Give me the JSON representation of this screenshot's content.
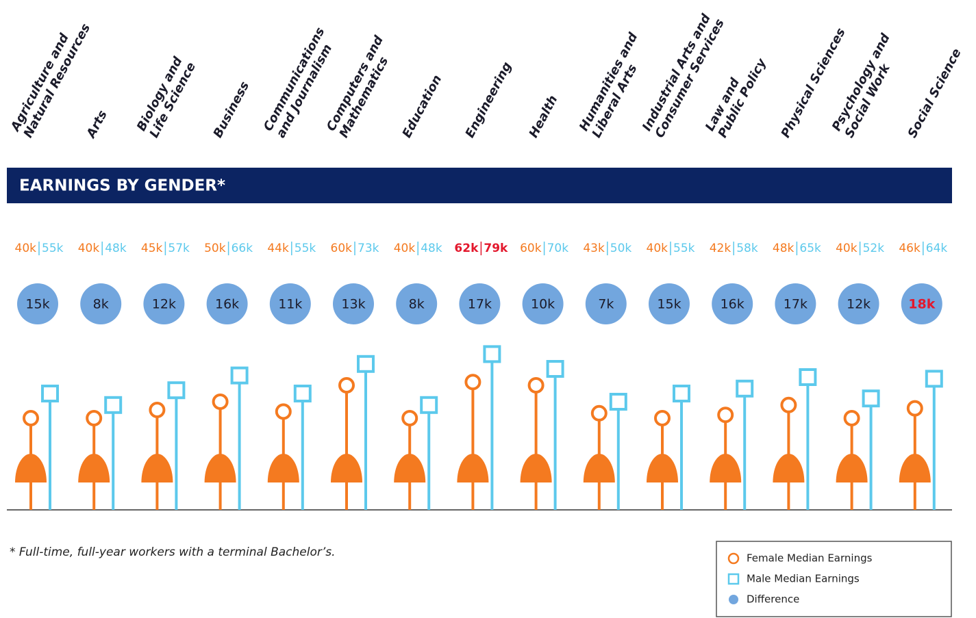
{
  "chart_data": {
    "type": "lollipop",
    "title": "EARNINGS BY GENDER*",
    "note": "* Full-time, full-year workers with a terminal Bachelor’s.",
    "categories": [
      "Agriculture and\nNatural Resources",
      "Arts",
      "Biology and\nLife Science",
      "Business",
      "Communications\nand Journalism",
      "Computers and\nMathematics",
      "Education",
      "Engineering",
      "Health",
      "Humanities and\nLiberal Arts",
      "Industrial Arts and\nConsumer Services",
      "Law and\nPublic Policy",
      "Physical Sciences",
      "Psychology and\nSocial Work",
      "Social Science"
    ],
    "series": [
      {
        "name": "Female Median Earnings",
        "color": "#f47a20",
        "values": [
          40,
          40,
          45,
          50,
          44,
          60,
          40,
          62,
          60,
          43,
          40,
          42,
          48,
          40,
          46
        ],
        "value_labels": [
          "40k",
          "40k",
          "45k",
          "50k",
          "44k",
          "60k",
          "40k",
          "62k",
          "60k",
          "43k",
          "40k",
          "42k",
          "48k",
          "40k",
          "46k"
        ]
      },
      {
        "name": "Male Median Earnings",
        "color": "#5cc9ec",
        "values": [
          55,
          48,
          57,
          66,
          55,
          73,
          48,
          79,
          70,
          50,
          55,
          58,
          65,
          52,
          64
        ],
        "value_labels": [
          "55k",
          "48k",
          "57k",
          "66k",
          "55k",
          "73k",
          "48k",
          "79k",
          "70k",
          "50k",
          "55k",
          "58k",
          "65k",
          "52k",
          "64k"
        ]
      },
      {
        "name": "Difference",
        "color": "#72a6de",
        "values": [
          15,
          8,
          12,
          16,
          11,
          13,
          8,
          17,
          10,
          7,
          15,
          16,
          17,
          12,
          18
        ],
        "value_labels": [
          "15k",
          "8k",
          "12k",
          "16k",
          "11k",
          "13k",
          "8k",
          "17k",
          "10k",
          "7k",
          "15k",
          "16k",
          "17k",
          "12k",
          "18k"
        ]
      }
    ],
    "highlight": {
      "color": "#e3182d",
      "earnings_category": 7,
      "difference_category": 14
    }
  }
}
